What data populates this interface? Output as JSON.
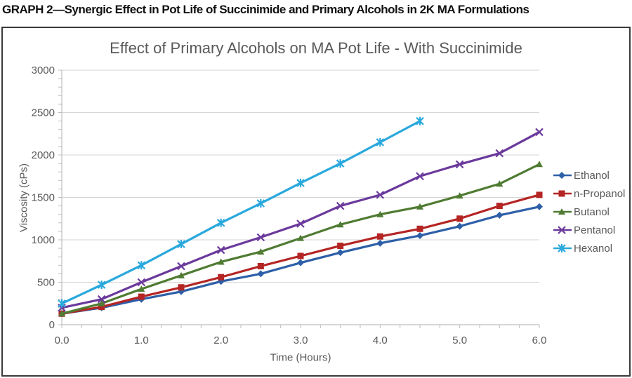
{
  "page": {
    "header": "GRAPH 2—Synergic Effect in Pot Life of Succinimide and Primary Alcohols in 2K MA Formulations"
  },
  "colors": {
    "text_gray": "#595959",
    "grid": "#d6d6d6",
    "axis": "#bdbdbd",
    "box_border": "#3a3a3a"
  },
  "chart_data": {
    "type": "line",
    "title": "Effect of Primary Alcohols on MA Pot Life - With Succinimide",
    "xlabel": "Time (Hours)",
    "ylabel": "Viscosity (cPs)",
    "xlim": [
      0.0,
      6.0
    ],
    "ylim": [
      0,
      3000
    ],
    "x_tick_labels": [
      "0.0",
      "1.0",
      "2.0",
      "3.0",
      "4.0",
      "5.0",
      "6.0"
    ],
    "y_tick_labels": [
      "0",
      "500",
      "1000",
      "1500",
      "2000",
      "2500",
      "3000"
    ],
    "grid": "horizontal",
    "legend_position": "right-outside",
    "x": [
      0,
      0.5,
      1.0,
      1.5,
      2.0,
      2.5,
      3.0,
      3.5,
      4.0,
      4.5,
      5.0,
      5.5,
      6.0
    ],
    "series": [
      {
        "name": "Ethanol",
        "color": "#2d5fa8",
        "marker": "diamond",
        "values": [
          130,
          200,
          300,
          390,
          510,
          600,
          730,
          850,
          960,
          1050,
          1160,
          1290,
          1390
        ]
      },
      {
        "name": "n-Propanol",
        "color": "#b42524",
        "marker": "square",
        "values": [
          130,
          210,
          330,
          440,
          560,
          690,
          810,
          930,
          1040,
          1130,
          1250,
          1400,
          1530
        ]
      },
      {
        "name": "Butanol",
        "color": "#4f7b32",
        "marker": "triangle",
        "values": [
          130,
          250,
          420,
          580,
          740,
          860,
          1020,
          1180,
          1300,
          1390,
          1520,
          1660,
          1890
        ]
      },
      {
        "name": "Pentanol",
        "color": "#6b3a9c",
        "marker": "x",
        "values": [
          200,
          300,
          500,
          690,
          880,
          1030,
          1190,
          1400,
          1530,
          1750,
          1890,
          2020,
          2270
        ]
      },
      {
        "name": "Hexanol",
        "color": "#29a8dd",
        "marker": "asterisk",
        "values": [
          250,
          470,
          700,
          950,
          1200,
          1430,
          1670,
          1900,
          2150,
          2400
        ]
      }
    ]
  }
}
